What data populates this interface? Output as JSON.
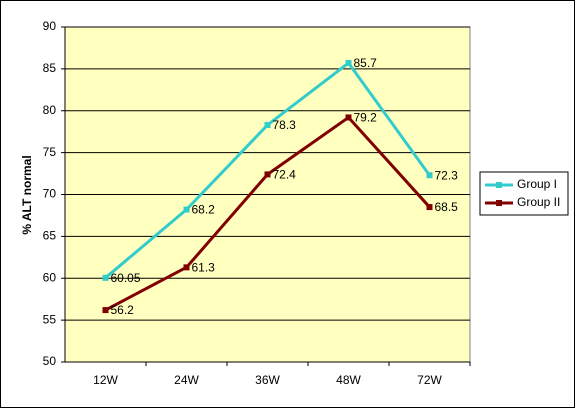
{
  "chart_data": {
    "type": "line",
    "categories": [
      "12W",
      "24W",
      "36W",
      "48W",
      "72W"
    ],
    "y_label": "% ALT normal",
    "series": [
      {
        "name": "Group I",
        "color": "#33cccc",
        "values": [
          60.05,
          68.2,
          78.3,
          85.7,
          72.3
        ]
      },
      {
        "name": "Group II",
        "color": "#800000",
        "values": [
          56.2,
          61.3,
          72.4,
          79.2,
          68.5
        ]
      }
    ],
    "ylim": [
      50,
      90
    ],
    "yticks": [
      50,
      55,
      60,
      65,
      70,
      75,
      80,
      85,
      90
    ],
    "grid": true,
    "legend": "right",
    "background": "#ffffc0"
  }
}
